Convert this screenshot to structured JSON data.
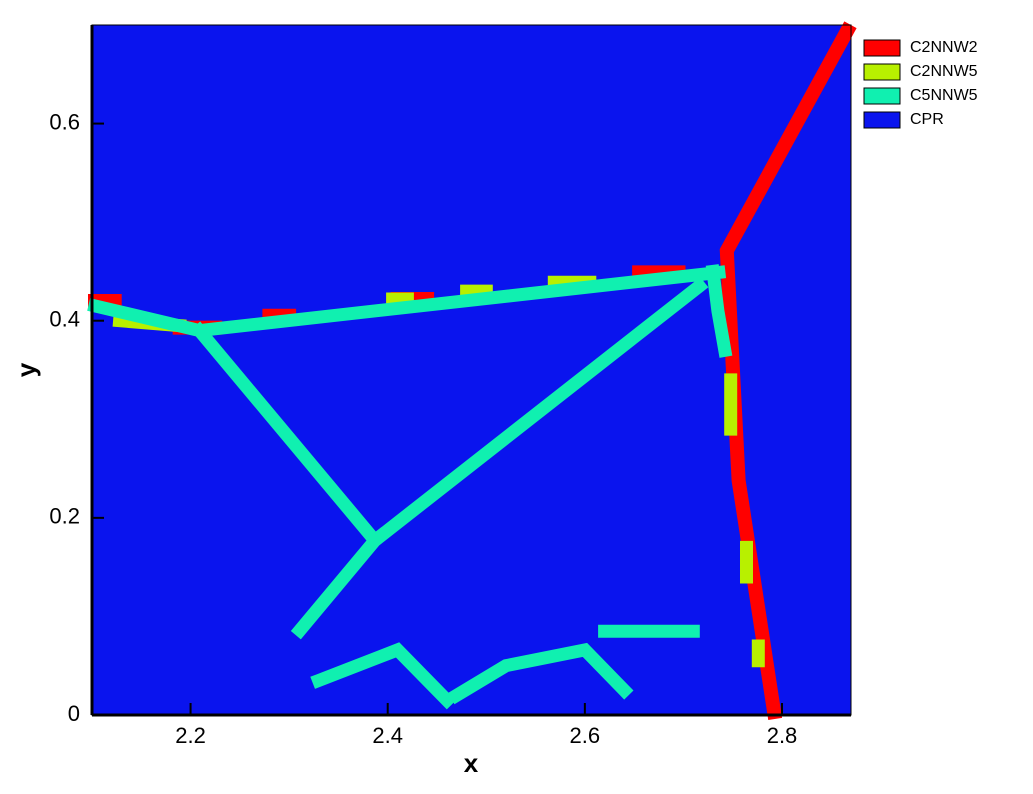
{
  "chart_data": {
    "type": "contour",
    "x_label": "x",
    "y_label": "y",
    "xlim": [
      2.1,
      2.87
    ],
    "ylim": [
      0,
      0.7
    ],
    "xticks": [
      2.2,
      2.4,
      2.6,
      2.8
    ],
    "yticks": [
      0,
      0.2,
      0.4,
      0.6
    ],
    "series": [
      {
        "name": "C2NNW2",
        "color": "#ff0000",
        "x": [
          2.866,
          2.744,
          2.756,
          2.792,
          null,
          2.655,
          2.695,
          null,
          2.103,
          2.123,
          null,
          2.189,
          2.225,
          null,
          2.41,
          2.44,
          null,
          2.28,
          2.3
        ],
        "y": [
          0.694,
          0.471,
          0.238,
          0.003,
          null,
          0.449,
          0.449,
          null,
          0.42,
          0.42,
          null,
          0.393,
          0.393,
          null,
          0.422,
          0.422,
          null,
          0.405,
          0.405
        ]
      },
      {
        "name": "C2NNW5",
        "color": "#b8f000",
        "x": [
          2.569,
          2.605,
          null,
          2.128,
          2.189,
          null,
          2.405,
          2.42,
          null,
          2.48,
          2.5,
          null,
          2.748,
          2.748,
          null,
          2.764,
          2.764,
          null,
          2.776,
          2.776
        ],
        "y": [
          0.439,
          0.439,
          null,
          0.4,
          0.395,
          null,
          0.422,
          0.422,
          null,
          0.43,
          0.43,
          null,
          0.34,
          0.29,
          null,
          0.17,
          0.14,
          null,
          0.07,
          0.055
        ]
      },
      {
        "name": "C5NNW5",
        "color": "#10f0b0",
        "x": [
          2.103,
          2.209,
          2.736,
          null,
          2.209,
          2.387,
          2.716,
          null,
          2.387,
          2.311,
          null,
          2.33,
          2.41,
          2.46,
          null,
          2.47,
          2.52,
          2.6,
          2.64,
          null,
          2.62,
          2.71,
          null,
          2.73,
          2.735,
          2.742
        ],
        "y": [
          0.415,
          0.39,
          0.449,
          null,
          0.39,
          0.177,
          0.435,
          null,
          0.177,
          0.086,
          null,
          0.035,
          0.066,
          0.015,
          null,
          0.02,
          0.05,
          0.066,
          0.025,
          null,
          0.085,
          0.085,
          null,
          0.45,
          0.41,
          0.37
        ]
      },
      {
        "name": "CPR",
        "color": "#0a14ee",
        "x": [],
        "y": []
      }
    ]
  }
}
